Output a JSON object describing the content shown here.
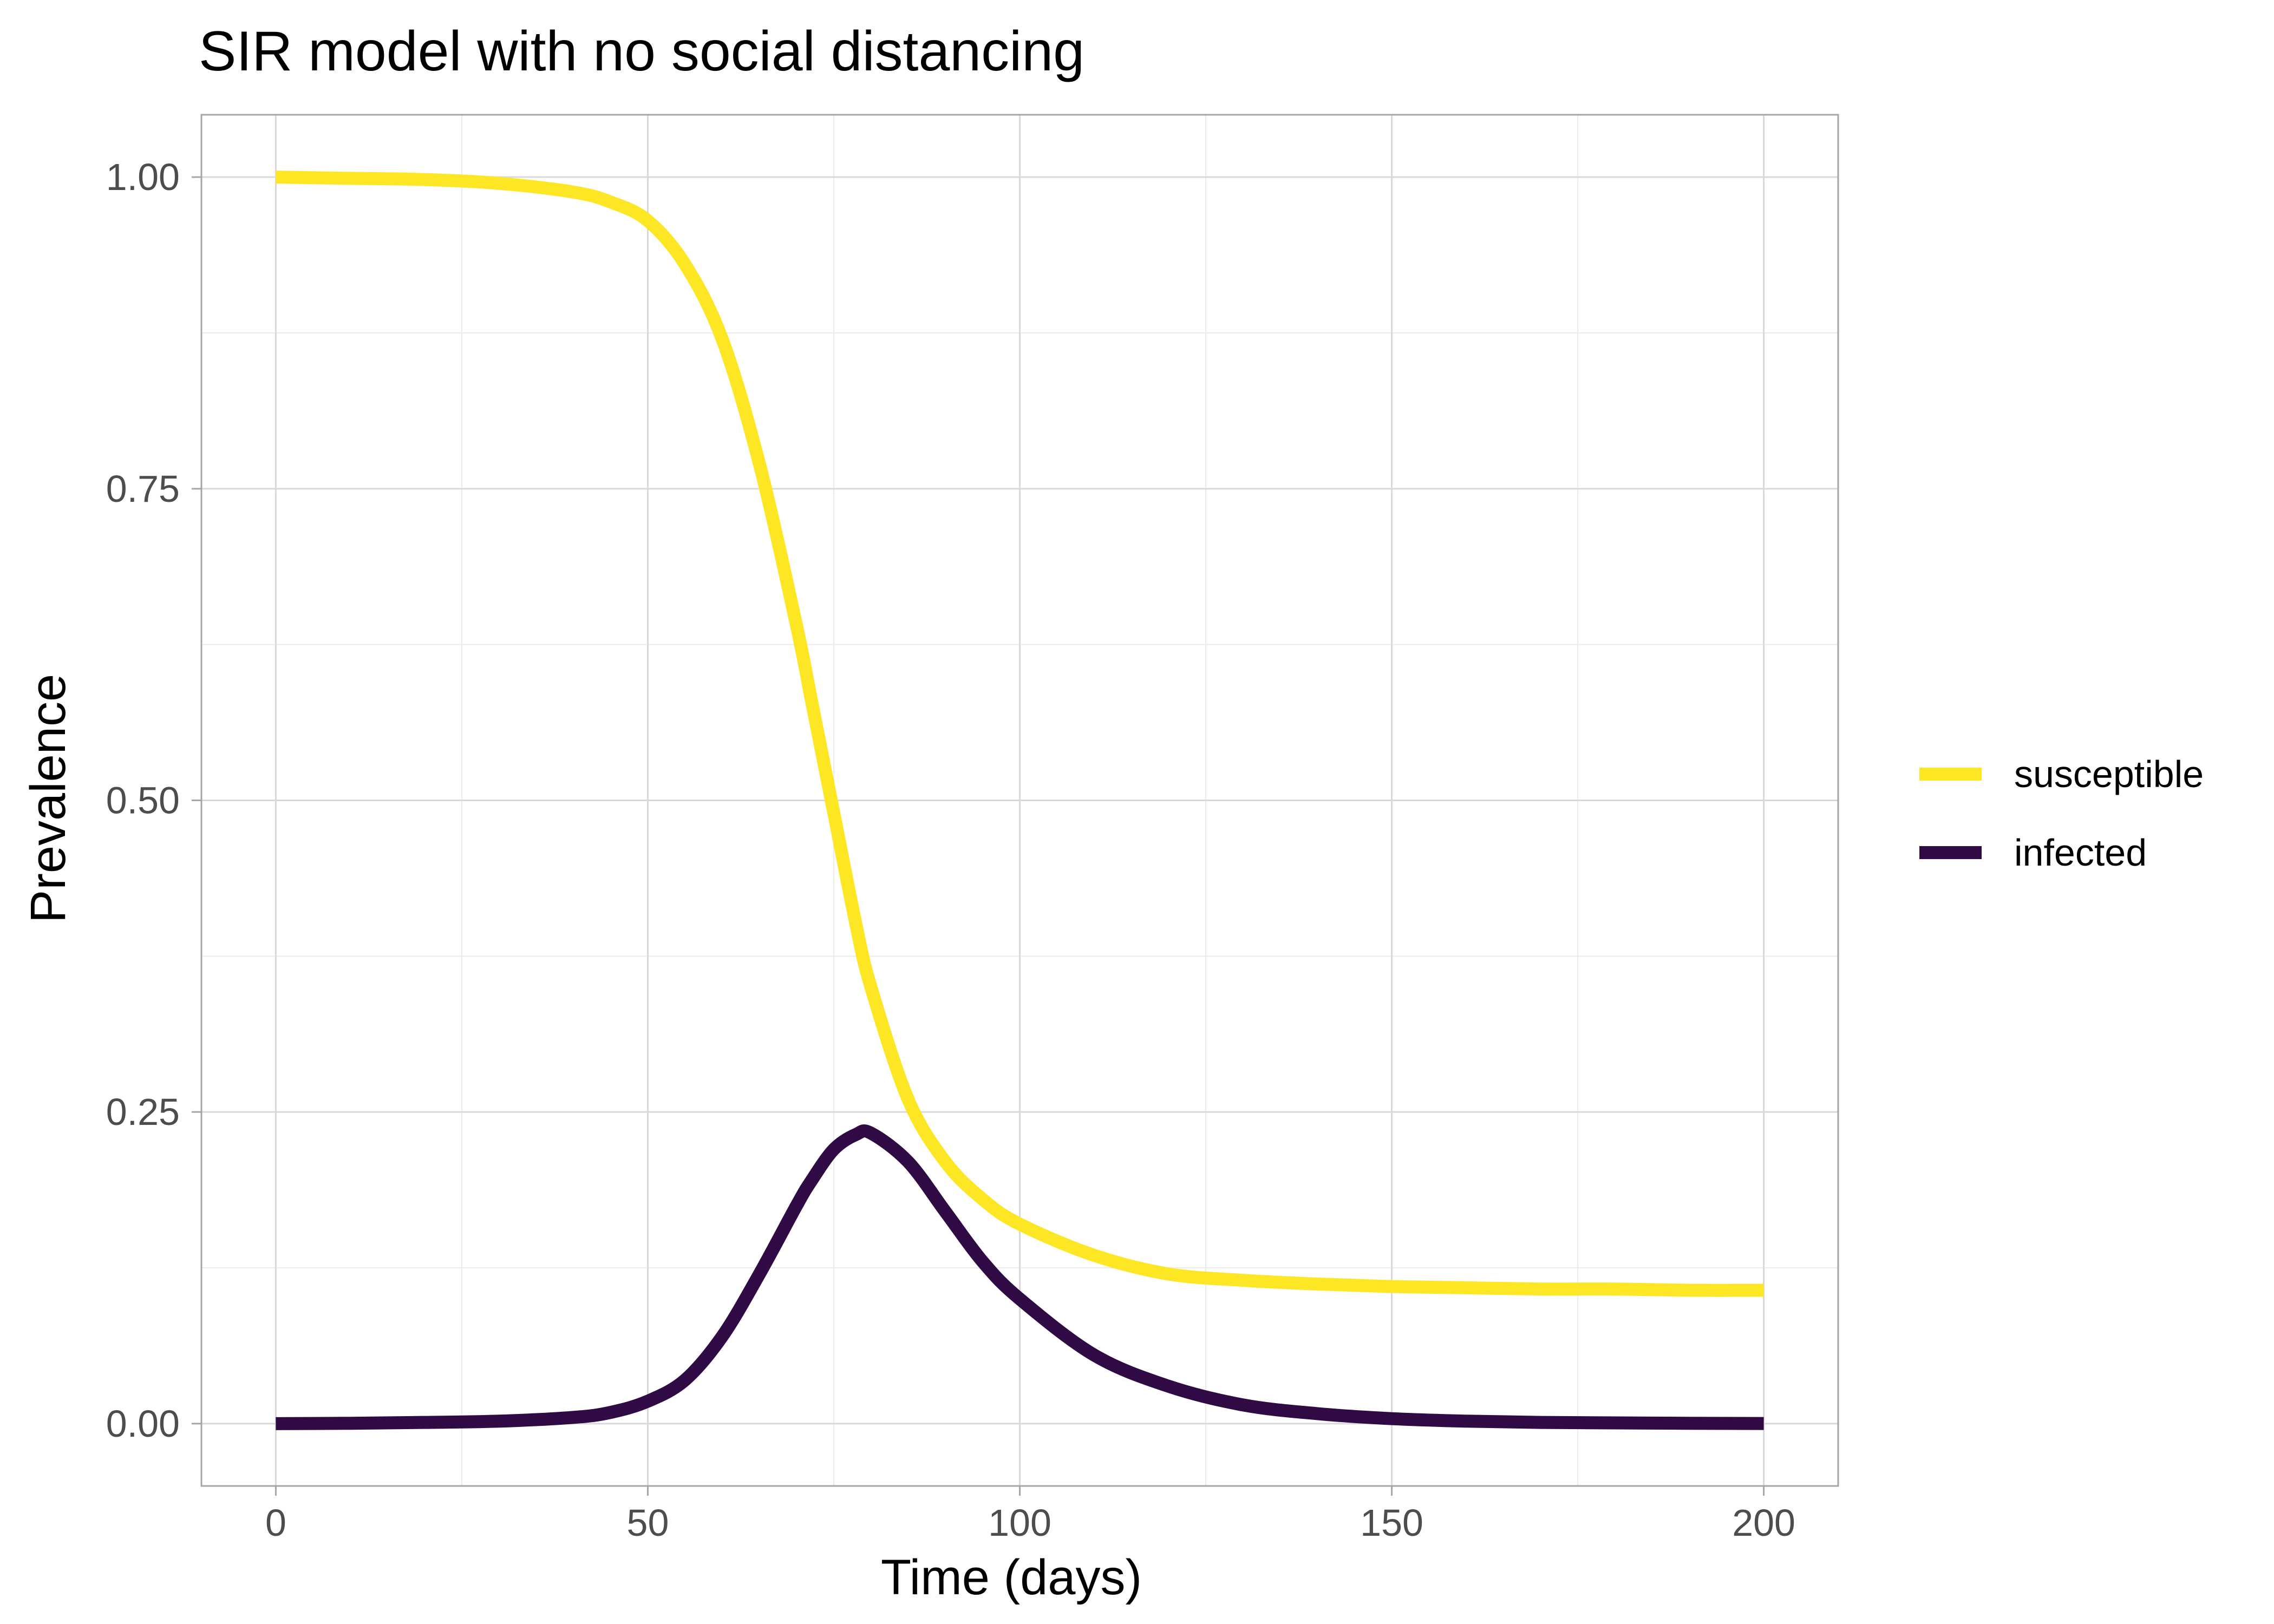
{
  "chart_data": {
    "type": "line",
    "title": "SIR model with no social distancing",
    "xlabel": "Time (days)",
    "ylabel": "Prevalence",
    "xlim": [
      -10,
      210
    ],
    "ylim": [
      -0.05,
      1.05
    ],
    "x_ticks": [
      0,
      50,
      100,
      150,
      200
    ],
    "x_tick_labels": [
      "0",
      "50",
      "100",
      "150",
      "200"
    ],
    "y_ticks": [
      0,
      0.25,
      0.5,
      0.75,
      1.0
    ],
    "y_tick_labels": [
      "0.00",
      "0.25",
      "0.50",
      "0.75",
      "1.00"
    ],
    "grid": true,
    "legend_position": "right",
    "x": [
      0,
      10,
      20,
      30,
      40,
      45,
      50,
      55,
      60,
      65,
      70,
      72,
      75,
      78,
      80,
      85,
      90,
      95,
      100,
      110,
      120,
      130,
      140,
      150,
      160,
      170,
      180,
      190,
      200
    ],
    "series": [
      {
        "name": "susceptible",
        "color": "#fde725",
        "values": [
          1.0,
          0.999,
          0.998,
          0.995,
          0.988,
          0.98,
          0.965,
          0.93,
          0.87,
          0.77,
          0.64,
          0.58,
          0.49,
          0.4,
          0.35,
          0.26,
          0.21,
          0.18,
          0.16,
          0.135,
          0.12,
          0.115,
          0.112,
          0.11,
          0.109,
          0.108,
          0.108,
          0.107,
          0.107
        ]
      },
      {
        "name": "infected",
        "color": "#300a45",
        "values": [
          0.0,
          0.0003,
          0.001,
          0.002,
          0.005,
          0.009,
          0.018,
          0.035,
          0.07,
          0.12,
          0.175,
          0.195,
          0.22,
          0.232,
          0.233,
          0.21,
          0.17,
          0.13,
          0.1,
          0.055,
          0.03,
          0.015,
          0.008,
          0.004,
          0.002,
          0.001,
          0.0006,
          0.0003,
          0.0001
        ]
      }
    ]
  }
}
